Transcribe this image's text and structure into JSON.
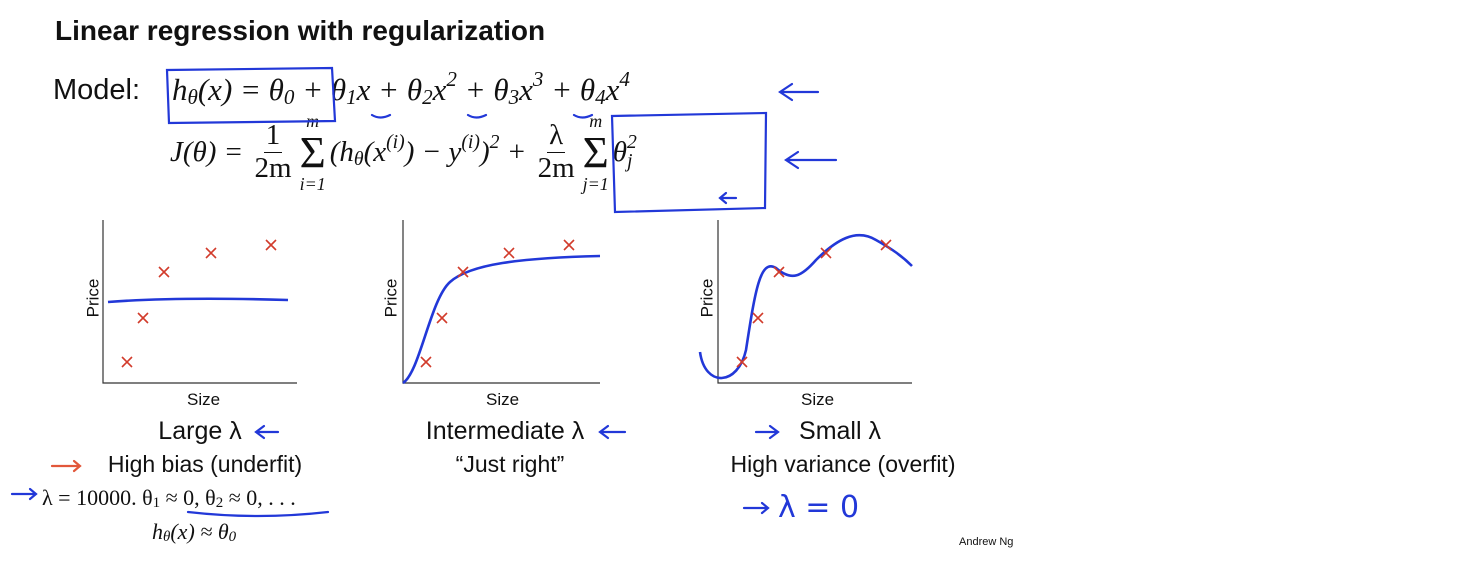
{
  "title": "Linear regression with regularization",
  "model_label": "Model:",
  "model_formula": [
    {
      "text": "h"
    },
    {
      "text": "θ",
      "pos": "sub"
    },
    {
      "text": "(x) = θ"
    },
    {
      "text": "0",
      "pos": "sub"
    },
    {
      "text": " + θ"
    },
    {
      "text": "1",
      "pos": "sub"
    },
    {
      "text": "x + θ"
    },
    {
      "text": "2",
      "pos": "sub"
    },
    {
      "text": "x"
    },
    {
      "text": "2",
      "pos": "sup"
    },
    {
      "text": " + θ"
    },
    {
      "text": "3",
      "pos": "sub"
    },
    {
      "text": "x"
    },
    {
      "text": "3",
      "pos": "sup"
    },
    {
      "text": " + θ"
    },
    {
      "text": "4",
      "pos": "sub"
    },
    {
      "text": "x"
    },
    {
      "text": "4",
      "pos": "sup"
    }
  ],
  "cost_formula": [
    {
      "text": "J(θ) = "
    },
    {
      "num": "1",
      "den": "2m"
    },
    {
      "top": "m",
      "sum": "Σ",
      "bottom": "i=1"
    },
    {
      "text": "(h"
    },
    {
      "text": "θ",
      "pos": "sub"
    },
    {
      "text": "(x"
    },
    {
      "text": "(i)",
      "pos": "sup"
    },
    {
      "text": ") − y"
    },
    {
      "text": "(i)",
      "pos": "sup"
    },
    {
      "text": ")"
    },
    {
      "text": "2",
      "pos": "sup"
    },
    {
      "text": " + "
    },
    {
      "num": "λ",
      "den": "2m"
    },
    {
      "top": "m",
      "sum": "Σ",
      "bottom": "j=1"
    },
    {
      "text": "θ"
    },
    {
      "sup": "2",
      "sub": "j"
    }
  ],
  "panels": [
    {
      "y_label": "Price",
      "x_label": "Size",
      "caption": "Large λ",
      "description": "High bias (underfit)"
    },
    {
      "y_label": "Price",
      "x_label": "Size",
      "caption": "Intermediate λ",
      "description": "“Just right”"
    },
    {
      "y_label": "Price",
      "x_label": "Size",
      "caption": "Small λ",
      "description": "High variance (overfit)"
    }
  ],
  "large_lambda_formula": [
    {
      "text": "λ = 10000. θ"
    },
    {
      "text": "1",
      "pos": "sub"
    },
    {
      "text": " ≈ 0, θ"
    },
    {
      "text": "2",
      "pos": "sub"
    },
    {
      "text": " ≈ 0, . . ."
    }
  ],
  "large_lambda_result": [
    {
      "text": "h"
    },
    {
      "text": "θ",
      "pos": "sub"
    },
    {
      "text": "(x) ≈ θ"
    },
    {
      "text": "0",
      "pos": "sub"
    }
  ],
  "small_lambda_note": "λ = 0",
  "author": "Andrew Ng"
}
